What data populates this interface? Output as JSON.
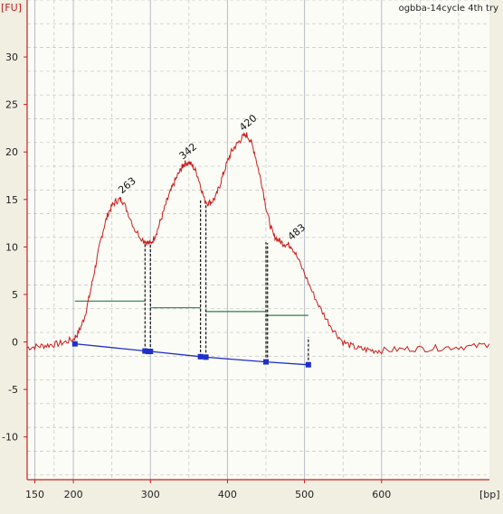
{
  "chart_data": {
    "type": "line",
    "title": "ogbba-14cycle 4th try",
    "ylabel": "[FU]",
    "xlabel": "[bp]",
    "xlim": [
      140,
      740
    ],
    "ylim": [
      -14.5,
      36
    ],
    "x_ticks": [
      150,
      200,
      300,
      400,
      500,
      600
    ],
    "y_ticks": [
      -10,
      -5,
      0,
      5,
      10,
      15,
      20,
      25,
      30
    ],
    "grid": true,
    "colors": {
      "trace": "#c81e1e",
      "baseline": "#1f2fc8",
      "region": "#2e7d4f",
      "axis": "#c81e1e",
      "grid": "#c9c9c9",
      "plot_bg": "#fcfcf6",
      "page_bg": "#f1efe2"
    },
    "series": [
      {
        "name": "",
        "x": [
          140,
          150,
          160,
          170,
          180,
          190,
          200,
          205,
          210,
          215,
          220,
          225,
          230,
          235,
          240,
          245,
          250,
          255,
          260,
          263,
          270,
          280,
          290,
          295,
          300,
          305,
          310,
          315,
          320,
          325,
          330,
          335,
          340,
          342,
          345,
          350,
          355,
          360,
          365,
          370,
          375,
          380,
          385,
          390,
          395,
          400,
          405,
          410,
          415,
          420,
          425,
          430,
          435,
          440,
          445,
          450,
          455,
          460,
          465,
          470,
          475,
          480,
          483,
          490,
          500,
          510,
          520,
          530,
          540,
          550,
          560,
          570,
          580,
          590,
          600,
          620,
          640,
          660,
          680,
          700,
          720,
          740
        ],
        "y": [
          -0.6,
          -0.5,
          -0.4,
          -0.3,
          -0.2,
          0.0,
          0.3,
          0.8,
          1.6,
          2.8,
          4.5,
          6.5,
          8.5,
          10.5,
          12.2,
          13.5,
          14.3,
          14.8,
          15.0,
          15.0,
          13.8,
          11.8,
          10.8,
          10.5,
          10.3,
          11.0,
          12.0,
          13.2,
          14.5,
          15.6,
          16.6,
          17.5,
          18.2,
          18.6,
          18.8,
          18.9,
          18.5,
          17.8,
          16.5,
          15.0,
          14.6,
          14.8,
          15.3,
          16.5,
          17.8,
          19.0,
          20.0,
          20.6,
          21.1,
          21.6,
          21.8,
          21.2,
          20.0,
          18.2,
          16.5,
          14.2,
          12.4,
          11.2,
          10.8,
          10.5,
          10.3,
          10.2,
          10.1,
          9.0,
          7.2,
          5.3,
          3.6,
          2.2,
          1.0,
          0.0,
          -0.4,
          -0.7,
          -0.8,
          -0.9,
          -0.9,
          -0.8,
          -0.7,
          -0.7,
          -0.6,
          -0.5,
          -0.5,
          -0.2
        ]
      }
    ],
    "peak_labels": [
      {
        "x": 263,
        "y": 15.0,
        "label": "263"
      },
      {
        "x": 342,
        "y": 18.6,
        "label": "342"
      },
      {
        "x": 420,
        "y": 21.6,
        "label": "420"
      },
      {
        "x": 483,
        "y": 10.1,
        "label": "483"
      }
    ],
    "baseline": {
      "x": [
        202,
        293,
        297,
        300,
        365,
        372,
        450,
        505
      ],
      "y": [
        -0.2,
        -0.95,
        -1.0,
        -1.0,
        -1.55,
        -1.6,
        -2.1,
        -2.4
      ]
    },
    "cut_lines": [
      {
        "x": 293,
        "y_bottom": -0.95,
        "y_top": 10.5
      },
      {
        "x": 300,
        "y_bottom": -1.0,
        "y_top": 10.3
      },
      {
        "x": 365,
        "y_bottom": -1.55,
        "y_top": 15.0
      },
      {
        "x": 372,
        "y_bottom": -1.6,
        "y_top": 14.6
      },
      {
        "x": 450,
        "y_bottom": -2.1,
        "y_top": 10.5
      },
      {
        "x": 452,
        "y_bottom": -2.1,
        "y_top": 10.4
      },
      {
        "x": 505,
        "y_bottom": -2.4,
        "y_top": 0.5
      }
    ],
    "regions": [
      {
        "x1": 202,
        "x2": 293,
        "y": 4.3
      },
      {
        "x1": 300,
        "x2": 365,
        "y": 3.6
      },
      {
        "x1": 372,
        "x2": 450,
        "y": 3.2
      },
      {
        "x1": 450,
        "x2": 505,
        "y": 2.8
      }
    ]
  }
}
